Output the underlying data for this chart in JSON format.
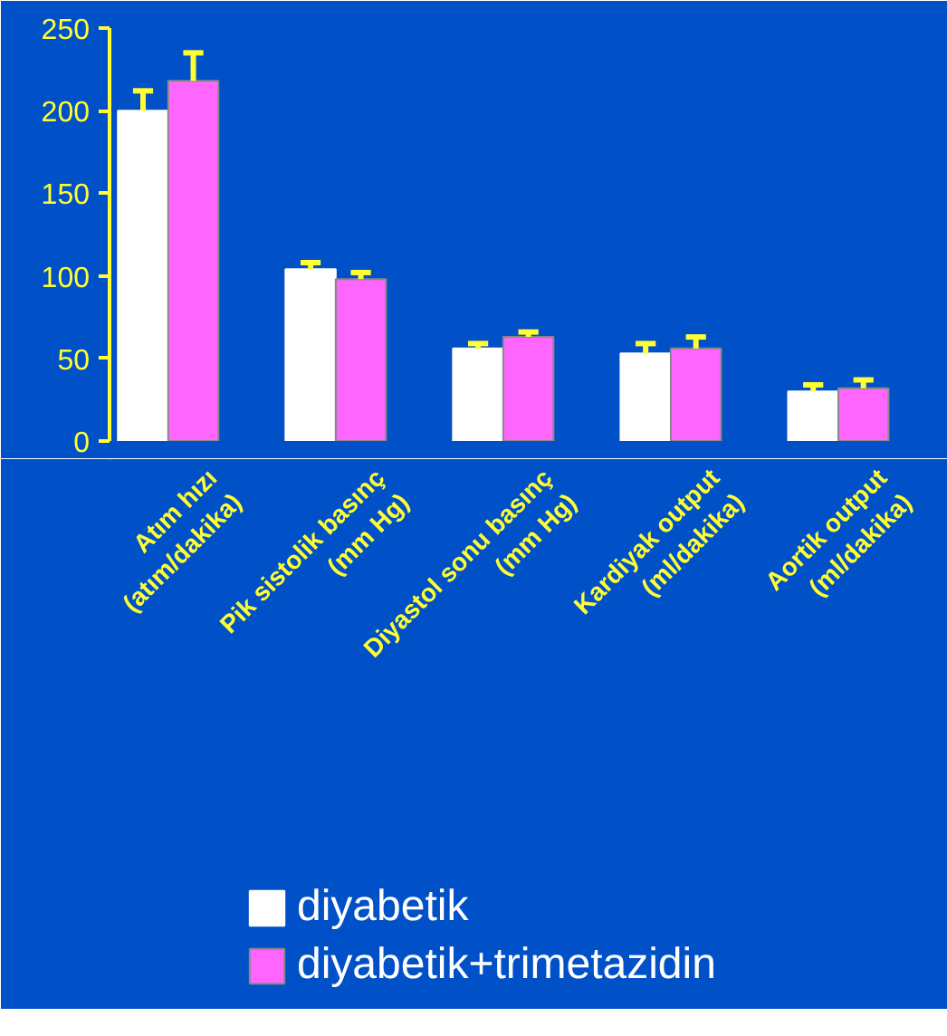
{
  "chart_data": {
    "type": "bar",
    "categories": [
      "Atım hızı\n(atım/dakika)",
      "Pik sistolik basınç\n(mm Hg)",
      "Diyastol sonu basınç\n(mm Hg)",
      "Kardiyak output\n(ml/dakika)",
      "Aortik output\n(ml/dakika)"
    ],
    "series": [
      {
        "name": "diyabetik",
        "color": "#ffffff",
        "values": [
          200,
          104,
          56,
          53,
          30
        ],
        "errors": [
          [
            200,
            212
          ],
          [
            104,
            108
          ],
          [
            56,
            59
          ],
          [
            53,
            59
          ],
          [
            30,
            34
          ]
        ]
      },
      {
        "name": "diyabetik+trimetazidin",
        "color": "#ff66ff",
        "values": [
          218,
          98,
          63,
          56,
          32
        ],
        "errors": [
          [
            218,
            235
          ],
          [
            98,
            102
          ],
          [
            63,
            66
          ],
          [
            56,
            63
          ],
          [
            32,
            37
          ]
        ]
      }
    ],
    "ylim": [
      0,
      250
    ],
    "yticks": [
      0,
      50,
      100,
      150,
      200,
      250
    ],
    "grid": false,
    "legend": "bottom"
  }
}
